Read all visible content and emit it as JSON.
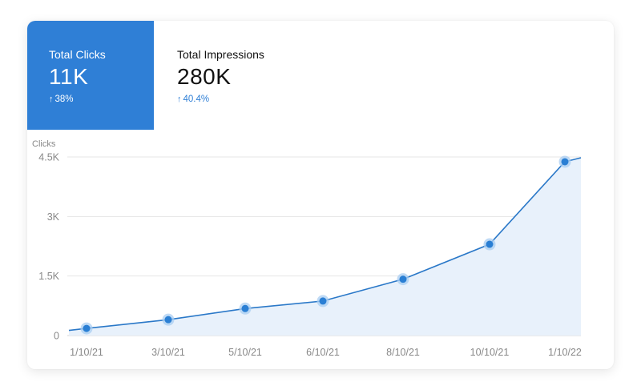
{
  "metrics": {
    "clicks": {
      "label": "Total Clicks",
      "value": "11K",
      "change": "38%",
      "arrow": "↑"
    },
    "impressions": {
      "label": "Total Impressions",
      "value": "280K",
      "change": "40.4%",
      "arrow": "↑"
    }
  },
  "colors": {
    "accent": "#2f7fd6",
    "line": "#2a78c8",
    "area": "#e8f1fb",
    "point": "#2a7fd4",
    "point_halo": "#a9cdf2",
    "grid": "#e4e4e4"
  },
  "chart_data": {
    "type": "area",
    "ylabel": "Clicks",
    "xlabel": "",
    "ylim": [
      0,
      4500
    ],
    "yticks": [
      0,
      1500,
      3000,
      4500
    ],
    "ytick_labels": [
      "0",
      "1.5K",
      "3K",
      "4.5K"
    ],
    "categories": [
      "1/10/21",
      "3/10/21",
      "5/10/21",
      "6/10/21",
      "8/10/21",
      "10/10/21",
      "1/10/22"
    ],
    "series": [
      {
        "values": [
          180,
          400,
          680,
          870,
          1420,
          2300,
          4380
        ],
        "start_value": 130,
        "end_value": 4480
      }
    ],
    "grid": true,
    "legend": "none"
  }
}
